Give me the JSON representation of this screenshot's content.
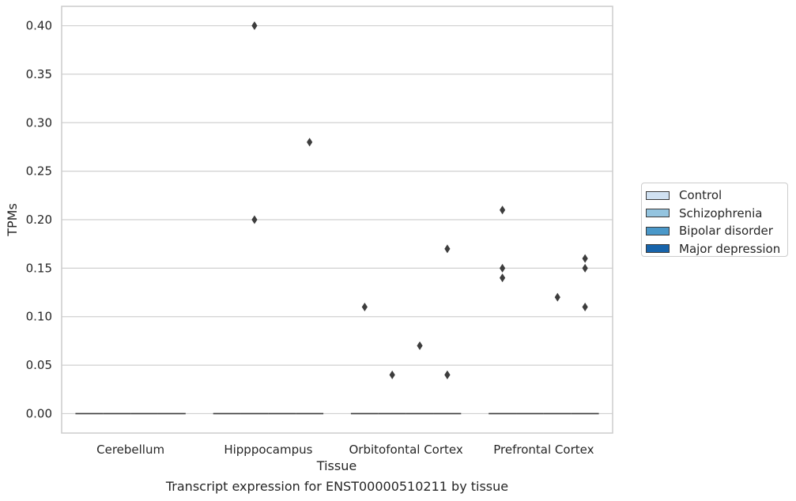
{
  "chart_data": {
    "type": "box",
    "title": "",
    "caption": "Transcript expression for ENST00000510211 by tissue",
    "xlabel": "Tissue",
    "ylabel": "TPMs",
    "ylim": [
      -0.02,
      0.42
    ],
    "yticks": [
      0.0,
      0.05,
      0.1,
      0.15,
      0.2,
      0.25,
      0.3,
      0.35,
      0.4
    ],
    "ytick_labels": [
      "0.00",
      "0.05",
      "0.10",
      "0.15",
      "0.20",
      "0.25",
      "0.30",
      "0.35",
      "0.40"
    ],
    "grid": true,
    "legend_position": "right",
    "categories": [
      "Cerebellum",
      "Hipppocampus",
      "Orbitofontal Cortex",
      "Prefrontal Cortex"
    ],
    "series": [
      {
        "name": "Control",
        "color": "#d0e1f2",
        "median": [
          0,
          0,
          0,
          0
        ],
        "outliers": [
          [],
          [],
          [
            0.11
          ],
          [
            0.21,
            0.15,
            0.14
          ]
        ]
      },
      {
        "name": "Schizophrenia",
        "color": "#94c4df",
        "median": [
          0,
          0,
          0,
          0
        ],
        "outliers": [
          [],
          [
            0.4,
            0.2
          ],
          [
            0.04
          ],
          []
        ]
      },
      {
        "name": "Bipolar disorder",
        "color": "#4a98c9",
        "median": [
          0,
          0,
          0,
          0
        ],
        "outliers": [
          [],
          [],
          [
            0.07
          ],
          [
            0.12
          ]
        ]
      },
      {
        "name": "Major depression",
        "color": "#1764ab",
        "median": [
          0,
          0,
          0,
          0
        ],
        "outliers": [
          [],
          [
            0.28
          ],
          [
            0.17,
            0.04,
            0.04
          ],
          [
            0.16,
            0.15,
            0.11
          ]
        ]
      }
    ]
  }
}
